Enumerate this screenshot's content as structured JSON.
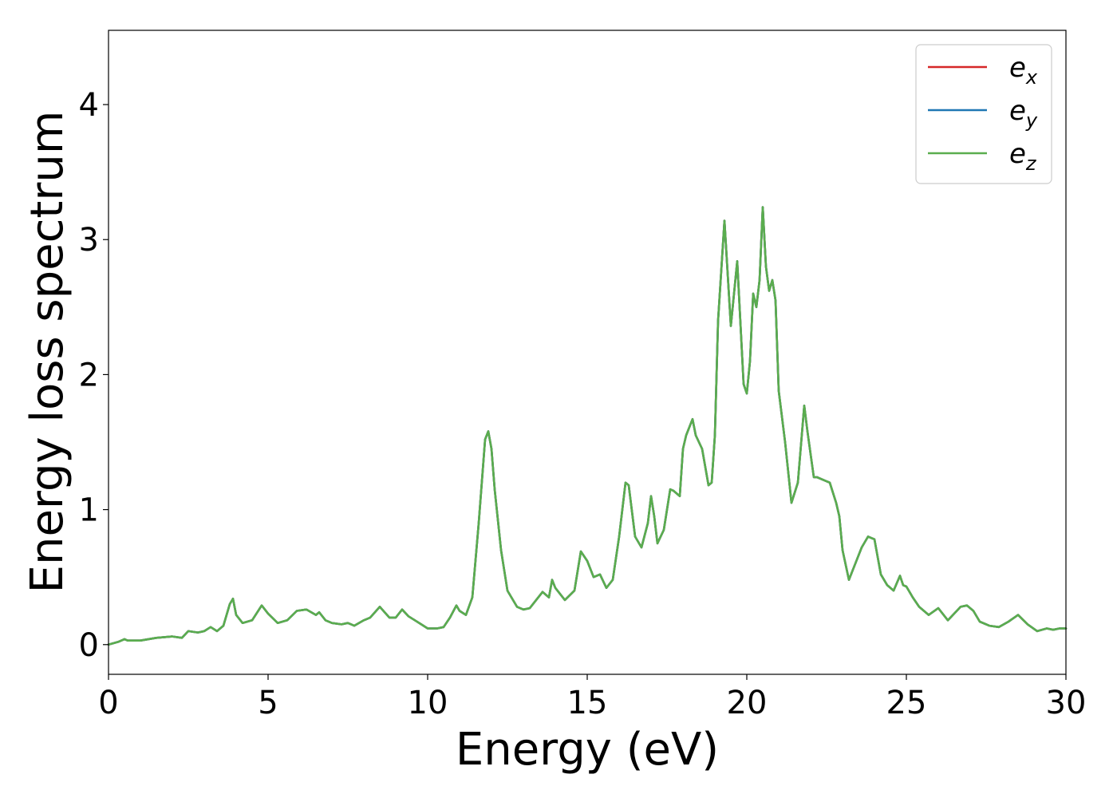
{
  "chart_data": {
    "type": "line",
    "title": "",
    "xlabel": "Energy (eV)",
    "ylabel": "Energy loss spectrum",
    "xlim": [
      0,
      30
    ],
    "ylim": [
      -0.22,
      4.55
    ],
    "x_ticks": [
      0,
      5,
      10,
      15,
      20,
      25,
      30
    ],
    "x_tick_labels": [
      "0",
      "5",
      "10",
      "15",
      "20",
      "25",
      "30"
    ],
    "y_ticks": [
      0,
      1,
      2,
      3,
      4
    ],
    "y_tick_labels": [
      "0",
      "1",
      "2",
      "3",
      "4"
    ],
    "grid": false,
    "legend_position": "top-right",
    "x": [
      0,
      0.3,
      0.5,
      0.6,
      1.0,
      1.5,
      2.0,
      2.3,
      2.5,
      2.8,
      3.0,
      3.2,
      3.4,
      3.6,
      3.8,
      3.9,
      4.0,
      4.2,
      4.5,
      4.8,
      5.0,
      5.3,
      5.6,
      5.9,
      6.2,
      6.5,
      6.6,
      6.8,
      7.0,
      7.3,
      7.5,
      7.7,
      8.0,
      8.2,
      8.5,
      8.8,
      9.0,
      9.2,
      9.4,
      9.6,
      9.8,
      10.0,
      10.3,
      10.5,
      10.7,
      10.9,
      11.0,
      11.2,
      11.4,
      11.6,
      11.8,
      11.9,
      12.0,
      12.1,
      12.3,
      12.5,
      12.8,
      13.0,
      13.2,
      13.4,
      13.6,
      13.8,
      13.9,
      14.0,
      14.3,
      14.6,
      14.8,
      15.0,
      15.2,
      15.4,
      15.6,
      15.8,
      16.0,
      16.2,
      16.3,
      16.5,
      16.7,
      16.9,
      17.0,
      17.1,
      17.2,
      17.4,
      17.6,
      17.7,
      17.9,
      18.0,
      18.1,
      18.3,
      18.4,
      18.6,
      18.8,
      18.9,
      19.0,
      19.1,
      19.3,
      19.5,
      19.7,
      19.9,
      20.0,
      20.1,
      20.2,
      20.3,
      20.4,
      20.5,
      20.6,
      20.7,
      20.8,
      20.9,
      21.0,
      21.2,
      21.4,
      21.6,
      21.8,
      21.9,
      22.1,
      22.2,
      22.4,
      22.6,
      22.8,
      22.9,
      23.0,
      23.2,
      23.4,
      23.6,
      23.8,
      24.0,
      24.2,
      24.4,
      24.6,
      24.8,
      24.9,
      25.0,
      25.2,
      25.4,
      25.7,
      26.0,
      26.3,
      26.5,
      26.7,
      26.9,
      27.1,
      27.3,
      27.6,
      27.9,
      28.2,
      28.5,
      28.8,
      29.1,
      29.4,
      29.6,
      29.8,
      30.0
    ],
    "series": [
      {
        "name": "e",
        "name_subscript": "x",
        "color": "#d62728",
        "values": [
          0.0,
          0.02,
          0.04,
          0.03,
          0.03,
          0.05,
          0.06,
          0.05,
          0.1,
          0.09,
          0.1,
          0.13,
          0.1,
          0.14,
          0.3,
          0.34,
          0.22,
          0.16,
          0.18,
          0.29,
          0.23,
          0.16,
          0.18,
          0.25,
          0.26,
          0.22,
          0.24,
          0.18,
          0.16,
          0.15,
          0.16,
          0.14,
          0.18,
          0.2,
          0.28,
          0.2,
          0.2,
          0.26,
          0.21,
          0.18,
          0.15,
          0.12,
          0.12,
          0.13,
          0.2,
          0.29,
          0.25,
          0.22,
          0.35,
          0.9,
          1.52,
          1.58,
          1.45,
          1.15,
          0.7,
          0.4,
          0.28,
          0.26,
          0.27,
          0.33,
          0.39,
          0.35,
          0.48,
          0.42,
          0.33,
          0.4,
          0.69,
          0.62,
          0.5,
          0.52,
          0.42,
          0.48,
          0.8,
          1.2,
          1.18,
          0.8,
          0.72,
          0.9,
          1.1,
          0.95,
          0.75,
          0.85,
          1.15,
          1.14,
          1.1,
          1.45,
          1.55,
          1.67,
          1.55,
          1.45,
          1.18,
          1.2,
          1.55,
          2.4,
          3.14,
          2.36,
          2.84,
          1.93,
          1.86,
          2.1,
          2.6,
          2.5,
          2.7,
          3.24,
          2.8,
          2.62,
          2.7,
          2.55,
          1.88,
          1.5,
          1.05,
          1.2,
          1.77,
          1.58,
          1.24,
          1.24,
          1.22,
          1.2,
          1.05,
          0.95,
          0.7,
          0.48,
          0.6,
          0.72,
          0.8,
          0.78,
          0.52,
          0.44,
          0.4,
          0.51,
          0.44,
          0.43,
          0.35,
          0.28,
          0.22,
          0.27,
          0.18,
          0.23,
          0.28,
          0.29,
          0.25,
          0.17,
          0.14,
          0.13,
          0.17,
          0.22,
          0.15,
          0.1,
          0.12,
          0.11,
          0.12,
          0.12
        ]
      },
      {
        "name": "e",
        "name_subscript": "y",
        "color": "#1f77b4",
        "values": [
          0.0,
          0.02,
          0.04,
          0.03,
          0.03,
          0.05,
          0.06,
          0.05,
          0.1,
          0.09,
          0.1,
          0.13,
          0.1,
          0.14,
          0.3,
          0.34,
          0.22,
          0.16,
          0.18,
          0.29,
          0.23,
          0.16,
          0.18,
          0.25,
          0.26,
          0.22,
          0.24,
          0.18,
          0.16,
          0.15,
          0.16,
          0.14,
          0.18,
          0.2,
          0.28,
          0.2,
          0.2,
          0.26,
          0.21,
          0.18,
          0.15,
          0.12,
          0.12,
          0.13,
          0.2,
          0.29,
          0.25,
          0.22,
          0.35,
          0.9,
          1.52,
          1.58,
          1.45,
          1.15,
          0.7,
          0.4,
          0.28,
          0.26,
          0.27,
          0.33,
          0.39,
          0.35,
          0.48,
          0.42,
          0.33,
          0.4,
          0.69,
          0.62,
          0.5,
          0.52,
          0.42,
          0.48,
          0.8,
          1.2,
          1.18,
          0.8,
          0.72,
          0.9,
          1.1,
          0.95,
          0.75,
          0.85,
          1.15,
          1.14,
          1.1,
          1.45,
          1.55,
          1.67,
          1.55,
          1.45,
          1.18,
          1.2,
          1.55,
          2.4,
          3.14,
          2.36,
          2.84,
          1.93,
          1.86,
          2.1,
          2.6,
          2.5,
          2.7,
          3.24,
          2.8,
          2.62,
          2.7,
          2.55,
          1.88,
          1.5,
          1.05,
          1.2,
          1.77,
          1.58,
          1.24,
          1.24,
          1.22,
          1.2,
          1.05,
          0.95,
          0.7,
          0.48,
          0.6,
          0.72,
          0.8,
          0.78,
          0.52,
          0.44,
          0.4,
          0.51,
          0.44,
          0.43,
          0.35,
          0.28,
          0.22,
          0.27,
          0.18,
          0.23,
          0.28,
          0.29,
          0.25,
          0.17,
          0.14,
          0.13,
          0.17,
          0.22,
          0.15,
          0.1,
          0.12,
          0.11,
          0.12,
          0.12
        ]
      },
      {
        "name": "e",
        "name_subscript": "z",
        "color": "#5aad4e",
        "values": [
          0.0,
          0.02,
          0.04,
          0.03,
          0.03,
          0.05,
          0.06,
          0.05,
          0.1,
          0.09,
          0.1,
          0.13,
          0.1,
          0.14,
          0.3,
          0.34,
          0.22,
          0.16,
          0.18,
          0.29,
          0.23,
          0.16,
          0.18,
          0.25,
          0.26,
          0.22,
          0.24,
          0.18,
          0.16,
          0.15,
          0.16,
          0.14,
          0.18,
          0.2,
          0.28,
          0.2,
          0.2,
          0.26,
          0.21,
          0.18,
          0.15,
          0.12,
          0.12,
          0.13,
          0.2,
          0.29,
          0.25,
          0.22,
          0.35,
          0.9,
          1.52,
          1.58,
          1.45,
          1.15,
          0.7,
          0.4,
          0.28,
          0.26,
          0.27,
          0.33,
          0.39,
          0.35,
          0.48,
          0.42,
          0.33,
          0.4,
          0.69,
          0.62,
          0.5,
          0.52,
          0.42,
          0.48,
          0.8,
          1.2,
          1.18,
          0.8,
          0.72,
          0.9,
          1.1,
          0.95,
          0.75,
          0.85,
          1.15,
          1.14,
          1.1,
          1.45,
          1.55,
          1.67,
          1.55,
          1.45,
          1.18,
          1.2,
          1.55,
          2.4,
          3.14,
          2.36,
          2.84,
          1.93,
          1.86,
          2.1,
          2.6,
          2.5,
          2.7,
          3.24,
          2.8,
          2.62,
          2.7,
          2.55,
          1.88,
          1.5,
          1.05,
          1.2,
          1.77,
          1.58,
          1.24,
          1.24,
          1.22,
          1.2,
          1.05,
          0.95,
          0.7,
          0.48,
          0.6,
          0.72,
          0.8,
          0.78,
          0.52,
          0.44,
          0.4,
          0.51,
          0.44,
          0.43,
          0.35,
          0.28,
          0.22,
          0.27,
          0.18,
          0.23,
          0.28,
          0.29,
          0.25,
          0.17,
          0.14,
          0.13,
          0.17,
          0.22,
          0.15,
          0.1,
          0.12,
          0.11,
          0.12,
          0.12
        ]
      }
    ]
  }
}
